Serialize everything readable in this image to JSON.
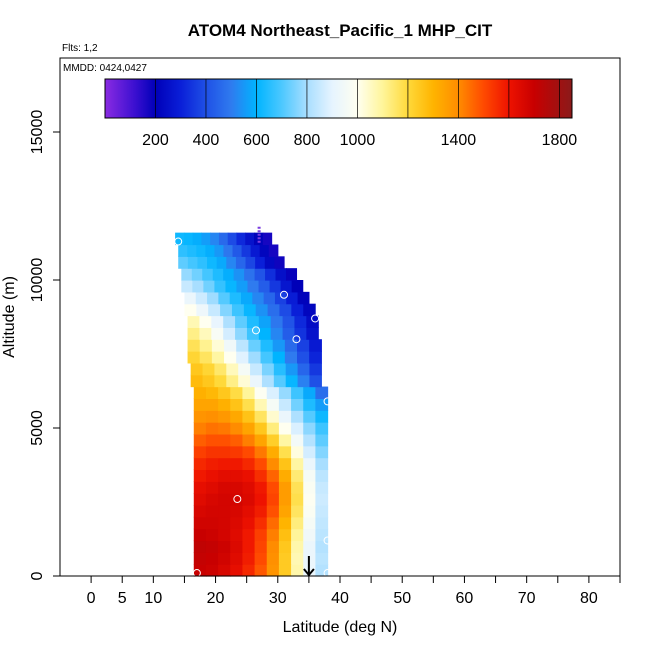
{
  "chart_data": {
    "type": "heatmap",
    "title": "ATOM4 Northeast_Pacific_1 MHP_CIT",
    "flights_label": "Flts: 1,2",
    "mmdd_label": "MMDD: 0424,0427",
    "xlabel": "Latitude (deg N)",
    "ylabel": "Altitude (m)",
    "xlim": [
      -5,
      85
    ],
    "ylim": [
      0,
      17500
    ],
    "x_ticks": [
      0,
      5,
      10,
      20,
      30,
      40,
      50,
      60,
      70,
      80
    ],
    "y_ticks": [
      0,
      5000,
      10000,
      15000
    ],
    "colorbar": {
      "range": [
        0,
        1850
      ],
      "stops": [
        {
          "v": 0,
          "c": "#8a2be2"
        },
        {
          "v": 120,
          "c": "#3a0fd0"
        },
        {
          "v": 200,
          "c": "#0000b8"
        },
        {
          "v": 300,
          "c": "#0a1fd8"
        },
        {
          "v": 400,
          "c": "#1f50e6"
        },
        {
          "v": 500,
          "c": "#2f7bef"
        },
        {
          "v": 600,
          "c": "#00b4ff"
        },
        {
          "v": 700,
          "c": "#4cc8ff"
        },
        {
          "v": 800,
          "c": "#a8deff"
        },
        {
          "v": 900,
          "c": "#e6f4ff"
        },
        {
          "v": 1000,
          "c": "#fffff0"
        },
        {
          "v": 1100,
          "c": "#fff59a"
        },
        {
          "v": 1200,
          "c": "#ffd93a"
        },
        {
          "v": 1300,
          "c": "#ffb400"
        },
        {
          "v": 1400,
          "c": "#ff8c00"
        },
        {
          "v": 1500,
          "c": "#ff4a00"
        },
        {
          "v": 1600,
          "c": "#ee1200"
        },
        {
          "v": 1700,
          "c": "#c80000"
        },
        {
          "v": 1850,
          "c": "#8b1a1a"
        }
      ],
      "tick_labels": [
        200,
        400,
        600,
        800,
        1000,
        1400,
        1800
      ]
    },
    "annotations": {
      "top_marker": {
        "lat": 27,
        "alt": 11800
      },
      "arrow": {
        "lat": 35,
        "alt": 0
      }
    },
    "sample_points": [
      {
        "lat": 14,
        "alt": 11300
      },
      {
        "lat": 31,
        "alt": 9500
      },
      {
        "lat": 36,
        "alt": 8700
      },
      {
        "lat": 26.5,
        "alt": 8300
      },
      {
        "lat": 33,
        "alt": 8000
      },
      {
        "lat": 38,
        "alt": 5900
      },
      {
        "lat": 23.5,
        "alt": 2600
      },
      {
        "lat": 38,
        "alt": 1200
      },
      {
        "lat": 17,
        "alt": 100
      },
      {
        "lat": 38,
        "alt": 100
      }
    ],
    "profile": {
      "alt_step": 400,
      "levels": [
        {
          "alt": 0,
          "lat_min": 16.5,
          "lat_max": 38,
          "values": [
            1700,
            1690,
            1660,
            1620,
            1560,
            1480,
            1380,
            1240,
            1080,
            920,
            820
          ]
        },
        {
          "alt": 400,
          "lat_min": 16.5,
          "lat_max": 38,
          "values": [
            1710,
            1700,
            1680,
            1640,
            1580,
            1500,
            1390,
            1240,
            1070,
            920,
            830
          ]
        },
        {
          "alt": 800,
          "lat_min": 16.5,
          "lat_max": 38,
          "values": [
            1720,
            1710,
            1690,
            1650,
            1590,
            1510,
            1400,
            1250,
            1080,
            920,
            820
          ]
        },
        {
          "alt": 1200,
          "lat_min": 16.5,
          "lat_max": 38,
          "values": [
            1700,
            1690,
            1670,
            1640,
            1590,
            1520,
            1420,
            1270,
            1100,
            940,
            830
          ]
        },
        {
          "alt": 1600,
          "lat_min": 16.5,
          "lat_max": 38,
          "values": [
            1680,
            1680,
            1670,
            1650,
            1610,
            1550,
            1450,
            1300,
            1130,
            960,
            840
          ]
        },
        {
          "alt": 2000,
          "lat_min": 16.5,
          "lat_max": 38,
          "values": [
            1660,
            1670,
            1670,
            1660,
            1630,
            1580,
            1490,
            1340,
            1160,
            980,
            850
          ]
        },
        {
          "alt": 2400,
          "lat_min": 16.5,
          "lat_max": 38,
          "values": [
            1640,
            1660,
            1670,
            1670,
            1650,
            1600,
            1510,
            1360,
            1180,
            990,
            860
          ]
        },
        {
          "alt": 2800,
          "lat_min": 16.5,
          "lat_max": 38,
          "values": [
            1620,
            1640,
            1660,
            1660,
            1640,
            1590,
            1500,
            1360,
            1170,
            980,
            850
          ]
        },
        {
          "alt": 3200,
          "lat_min": 16.5,
          "lat_max": 38,
          "values": [
            1590,
            1610,
            1630,
            1630,
            1610,
            1550,
            1460,
            1320,
            1140,
            960,
            830
          ]
        },
        {
          "alt": 3600,
          "lat_min": 16.5,
          "lat_max": 38,
          "values": [
            1560,
            1580,
            1590,
            1590,
            1560,
            1500,
            1400,
            1260,
            1090,
            920,
            800
          ]
        },
        {
          "alt": 4000,
          "lat_min": 16.5,
          "lat_max": 38,
          "values": [
            1520,
            1540,
            1540,
            1530,
            1500,
            1430,
            1320,
            1180,
            1020,
            870,
            760
          ]
        },
        {
          "alt": 4400,
          "lat_min": 16.5,
          "lat_max": 38,
          "values": [
            1470,
            1490,
            1490,
            1470,
            1420,
            1340,
            1230,
            1090,
            950,
            820,
            720
          ]
        },
        {
          "alt": 4800,
          "lat_min": 16.5,
          "lat_max": 38,
          "values": [
            1420,
            1440,
            1430,
            1400,
            1340,
            1250,
            1130,
            1000,
            880,
            770,
            680
          ]
        },
        {
          "alt": 5200,
          "lat_min": 16.5,
          "lat_max": 38,
          "values": [
            1380,
            1390,
            1370,
            1330,
            1260,
            1160,
            1040,
            920,
            810,
            710,
            620
          ]
        },
        {
          "alt": 5600,
          "lat_min": 16.5,
          "lat_max": 38,
          "values": [
            1340,
            1340,
            1310,
            1260,
            1180,
            1070,
            960,
            850,
            740,
            640,
            560
          ]
        },
        {
          "alt": 6000,
          "lat_min": 16.5,
          "lat_max": 38,
          "values": [
            1310,
            1290,
            1250,
            1190,
            1100,
            990,
            880,
            780,
            680,
            580,
            470
          ]
        },
        {
          "alt": 6400,
          "lat_min": 16,
          "lat_max": 37,
          "values": [
            1280,
            1250,
            1200,
            1120,
            1030,
            920,
            810,
            710,
            610,
            510,
            400
          ]
        },
        {
          "alt": 6800,
          "lat_min": 16,
          "lat_max": 37,
          "values": [
            1250,
            1210,
            1150,
            1060,
            960,
            850,
            750,
            650,
            550,
            450,
            350
          ]
        },
        {
          "alt": 7200,
          "lat_min": 15.5,
          "lat_max": 37,
          "values": [
            1210,
            1160,
            1090,
            1000,
            890,
            790,
            690,
            600,
            500,
            400,
            310
          ]
        },
        {
          "alt": 7600,
          "lat_min": 15.5,
          "lat_max": 37,
          "values": [
            1170,
            1110,
            1030,
            940,
            830,
            730,
            640,
            550,
            460,
            370,
            280
          ]
        },
        {
          "alt": 8000,
          "lat_min": 15.5,
          "lat_max": 36.5,
          "values": [
            1120,
            1060,
            970,
            870,
            770,
            680,
            600,
            520,
            430,
            340,
            260
          ]
        },
        {
          "alt": 8400,
          "lat_min": 15.5,
          "lat_max": 36.5,
          "values": [
            1070,
            1000,
            910,
            810,
            720,
            640,
            570,
            490,
            410,
            320,
            240
          ]
        },
        {
          "alt": 8800,
          "lat_min": 15,
          "lat_max": 36,
          "values": [
            1000,
            930,
            850,
            760,
            680,
            610,
            540,
            470,
            390,
            300,
            220
          ]
        },
        {
          "alt": 9200,
          "lat_min": 15,
          "lat_max": 35,
          "values": [
            920,
            860,
            790,
            710,
            640,
            580,
            520,
            450,
            370,
            290,
            210
          ]
        },
        {
          "alt": 9600,
          "lat_min": 14.5,
          "lat_max": 34,
          "values": [
            850,
            800,
            740,
            670,
            610,
            560,
            500,
            430,
            350,
            270,
            200
          ]
        },
        {
          "alt": 10000,
          "lat_min": 14.5,
          "lat_max": 33,
          "values": [
            780,
            740,
            690,
            640,
            590,
            540,
            480,
            410,
            330,
            250,
            190
          ]
        },
        {
          "alt": 10400,
          "lat_min": 14,
          "lat_max": 31,
          "values": [
            720,
            690,
            660,
            620,
            580,
            520,
            450,
            380,
            300,
            230,
            180
          ]
        },
        {
          "alt": 10800,
          "lat_min": 14,
          "lat_max": 30,
          "values": [
            660,
            640,
            620,
            590,
            550,
            490,
            420,
            350,
            280,
            220,
            170
          ]
        },
        {
          "alt": 11200,
          "lat_min": 13.5,
          "lat_max": 29,
          "values": [
            620,
            610,
            590,
            560,
            520,
            460,
            390,
            320,
            260,
            210,
            170
          ]
        }
      ]
    }
  }
}
